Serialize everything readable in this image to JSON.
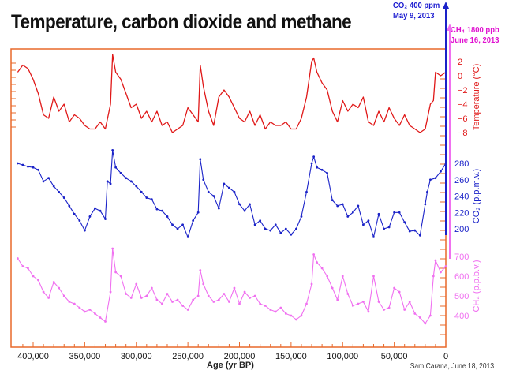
{
  "header": {
    "title": "Temperature, carbon dioxide and methane"
  },
  "annotations": {
    "co2": {
      "line1": "CO₂ 400 ppm",
      "line2": "May 9, 2013",
      "color": "#1a1ad0"
    },
    "ch4": {
      "line1": "CH₄ 1800 ppb",
      "line2": "June 16, 2013",
      "color": "#e010d0"
    }
  },
  "credit": "Sam Carana, June 18, 2013",
  "colors": {
    "frame": "#e8682a",
    "temperature": "#e01818",
    "co2": "#1a22c8",
    "ch4": "#f070f0"
  },
  "chart_data": {
    "type": "line",
    "title": "Temperature, carbon dioxide and methane",
    "xlabel": "Age (yr BP)",
    "xlim": [
      420000,
      0
    ],
    "x_ticks": [
      400000,
      350000,
      300000,
      250000,
      200000,
      150000,
      100000,
      50000,
      0
    ],
    "x_tick_labels": [
      "400,000",
      "350,000",
      "300,000",
      "250,000",
      "200,000",
      "150,000",
      "100,000",
      "50,000",
      "0"
    ],
    "grid": false,
    "legend": "none (right-side axis labels per panel)",
    "panels": [
      {
        "name": "Temperature",
        "ylabel": "Temperature (°C)",
        "unit": "°C",
        "y_ticks": [
          2,
          0,
          -2,
          -4,
          -6,
          -8
        ],
        "ylim": [
          -9,
          3.5
        ],
        "color": "#e01818",
        "x": [
          415000,
          410000,
          405000,
          400000,
          395000,
          390000,
          385000,
          380000,
          375000,
          370000,
          365000,
          360000,
          355000,
          350000,
          345000,
          340000,
          335000,
          330000,
          325000,
          323000,
          320000,
          315000,
          310000,
          305000,
          300000,
          295000,
          290000,
          285000,
          280000,
          275000,
          270000,
          265000,
          260000,
          255000,
          250000,
          245000,
          240000,
          238000,
          235000,
          230000,
          225000,
          220000,
          215000,
          210000,
          205000,
          200000,
          195000,
          190000,
          185000,
          180000,
          175000,
          170000,
          165000,
          160000,
          155000,
          150000,
          145000,
          140000,
          135000,
          130000,
          128000,
          125000,
          120000,
          115000,
          110000,
          105000,
          100000,
          95000,
          90000,
          85000,
          80000,
          75000,
          70000,
          65000,
          60000,
          55000,
          50000,
          45000,
          40000,
          35000,
          30000,
          25000,
          20000,
          15000,
          12000,
          10000,
          5000,
          0
        ],
        "values": [
          0.5,
          1.5,
          1.0,
          -0.5,
          -2.5,
          -5.5,
          -6.0,
          -3.0,
          -5.0,
          -4.0,
          -6.5,
          -5.5,
          -6.0,
          -7.0,
          -7.5,
          -7.5,
          -6.5,
          -7.5,
          -4.0,
          3.0,
          0.5,
          -0.5,
          -2.5,
          -4.5,
          -4.0,
          -6.0,
          -5.0,
          -6.5,
          -5.0,
          -7.0,
          -6.5,
          -8.0,
          -7.5,
          -7.0,
          -4.5,
          -5.5,
          -6.5,
          1.5,
          -1.5,
          -5.0,
          -7.0,
          -3.0,
          -2.0,
          -3.0,
          -4.5,
          -6.0,
          -6.5,
          -5.0,
          -7.0,
          -5.5,
          -7.5,
          -6.5,
          -7.0,
          -7.0,
          -6.5,
          -7.5,
          -7.5,
          -6.0,
          -3.0,
          2.0,
          2.5,
          0.5,
          -1.0,
          -2.0,
          -5.0,
          -6.5,
          -3.5,
          -5.0,
          -4.0,
          -4.5,
          -3.0,
          -6.5,
          -7.0,
          -5.0,
          -6.5,
          -4.5,
          -6.0,
          -7.0,
          -5.5,
          -7.0,
          -7.5,
          -8.0,
          -7.5,
          -4.0,
          -3.5,
          0.5,
          0.0,
          0.5
        ]
      },
      {
        "name": "CO2",
        "ylabel": "CO₂ (p.p.m.v.)",
        "unit": "ppmv",
        "y_ticks": [
          280,
          260,
          240,
          220,
          200
        ],
        "ylim": [
          180,
          300
        ],
        "color": "#1a22c8",
        "x": [
          415000,
          410000,
          405000,
          400000,
          395000,
          390000,
          385000,
          380000,
          375000,
          370000,
          365000,
          360000,
          355000,
          350000,
          345000,
          340000,
          335000,
          330000,
          328000,
          325000,
          323000,
          320000,
          315000,
          310000,
          305000,
          300000,
          295000,
          290000,
          285000,
          280000,
          275000,
          270000,
          265000,
          260000,
          255000,
          250000,
          245000,
          240000,
          238000,
          235000,
          230000,
          225000,
          220000,
          215000,
          210000,
          205000,
          200000,
          195000,
          190000,
          185000,
          180000,
          175000,
          170000,
          165000,
          160000,
          155000,
          150000,
          145000,
          140000,
          135000,
          130000,
          128000,
          125000,
          120000,
          115000,
          110000,
          105000,
          100000,
          95000,
          90000,
          85000,
          80000,
          75000,
          70000,
          65000,
          60000,
          55000,
          50000,
          45000,
          40000,
          35000,
          30000,
          25000,
          20000,
          18000,
          15000,
          10000,
          5000,
          0
        ],
        "values": [
          280,
          278,
          276,
          275,
          272,
          258,
          262,
          252,
          245,
          238,
          228,
          218,
          210,
          198,
          215,
          225,
          222,
          212,
          258,
          255,
          296,
          275,
          268,
          262,
          258,
          252,
          245,
          238,
          236,
          224,
          222,
          215,
          205,
          200,
          205,
          190,
          210,
          220,
          285,
          260,
          245,
          240,
          225,
          255,
          250,
          245,
          230,
          222,
          230,
          205,
          210,
          200,
          198,
          205,
          195,
          200,
          193,
          200,
          215,
          245,
          280,
          288,
          275,
          272,
          268,
          235,
          228,
          230,
          215,
          220,
          228,
          205,
          210,
          190,
          218,
          200,
          202,
          220,
          220,
          208,
          197,
          198,
          192,
          230,
          245,
          260,
          262,
          270,
          280
        ]
      },
      {
        "name": "CH4",
        "ylabel": "CH₄ (p.p.b.v.)",
        "unit": "ppbv",
        "y_ticks": [
          700,
          600,
          500,
          400
        ],
        "ylim": [
          340,
          750
        ],
        "color": "#f070f0",
        "x": [
          415000,
          410000,
          405000,
          400000,
          395000,
          390000,
          385000,
          380000,
          375000,
          370000,
          365000,
          360000,
          355000,
          350000,
          345000,
          340000,
          335000,
          330000,
          325000,
          323000,
          320000,
          315000,
          310000,
          305000,
          300000,
          295000,
          290000,
          285000,
          280000,
          275000,
          270000,
          265000,
          260000,
          255000,
          250000,
          245000,
          240000,
          238000,
          235000,
          230000,
          225000,
          220000,
          215000,
          210000,
          205000,
          200000,
          195000,
          190000,
          185000,
          180000,
          175000,
          170000,
          165000,
          160000,
          155000,
          150000,
          145000,
          140000,
          135000,
          130000,
          128000,
          125000,
          120000,
          115000,
          110000,
          105000,
          100000,
          95000,
          90000,
          85000,
          80000,
          75000,
          70000,
          65000,
          60000,
          55000,
          50000,
          45000,
          40000,
          35000,
          30000,
          25000,
          20000,
          15000,
          12000,
          10000,
          5000,
          0
        ],
        "values": [
          690,
          650,
          640,
          600,
          580,
          520,
          490,
          570,
          540,
          500,
          470,
          460,
          440,
          420,
          430,
          410,
          390,
          370,
          520,
          740,
          620,
          600,
          510,
          490,
          560,
          490,
          500,
          540,
          480,
          460,
          510,
          470,
          480,
          450,
          430,
          480,
          500,
          630,
          560,
          500,
          470,
          480,
          510,
          470,
          540,
          460,
          520,
          490,
          500,
          460,
          450,
          430,
          420,
          440,
          410,
          400,
          380,
          400,
          460,
          560,
          710,
          670,
          640,
          600,
          540,
          480,
          600,
          510,
          450,
          460,
          470,
          420,
          600,
          470,
          430,
          440,
          540,
          520,
          430,
          470,
          410,
          390,
          360,
          400,
          600,
          680,
          620,
          650
        ]
      }
    ]
  }
}
